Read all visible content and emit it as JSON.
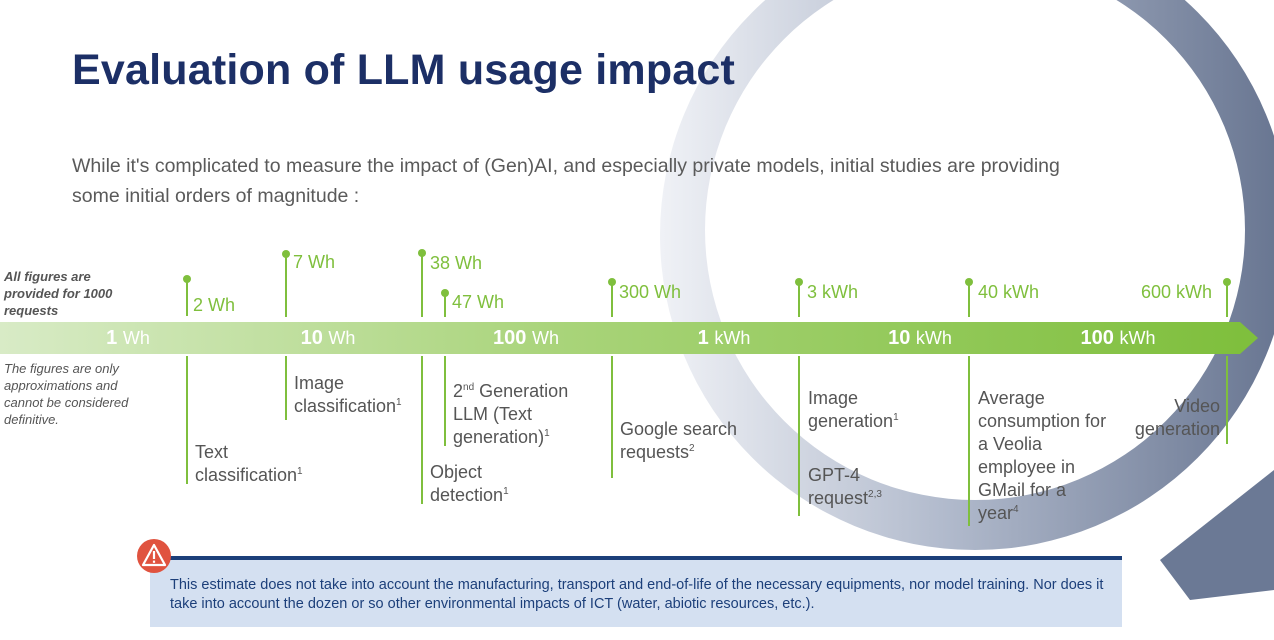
{
  "title": "Evaluation of LLM usage impact",
  "subtitle": "While it's complicated to measure the impact of (Gen)AI, and especially private models, initial studies are providing some initial orders of magnitude :",
  "notes": {
    "top": "All figures are provided for 1000 requests",
    "bottom": "The figures are only approximations and cannot be considered definitive."
  },
  "scale": [
    {
      "num": "1",
      "unit": "Wh"
    },
    {
      "num": "10",
      "unit": "Wh"
    },
    {
      "num": "100",
      "unit": "Wh"
    },
    {
      "num": "1",
      "unit": "kWh"
    },
    {
      "num": "10",
      "unit": "kWh"
    },
    {
      "num": "100",
      "unit": "kWh"
    }
  ],
  "items": [
    {
      "value": "2 Wh",
      "label": "Text classification",
      "sup": "1"
    },
    {
      "value": "7 Wh",
      "label": "Image classification",
      "sup": "1"
    },
    {
      "value": "38 Wh",
      "label": "Object detection",
      "sup": "1"
    },
    {
      "value": "47 Wh",
      "label_sup_prefix": "nd",
      "label_prefix": "2",
      "label": " Generation LLM (Text generation)",
      "sup": "1"
    },
    {
      "value": "300 Wh",
      "label": "Google search requests",
      "sup": "2"
    },
    {
      "value": "3 kWh",
      "label": "Image generation",
      "sup": "1",
      "label2": "GPT-4 request",
      "sup2": "2,3"
    },
    {
      "value": "40 kWh",
      "label": "Average consumption for a Veolia employee in GMail for a year",
      "sup": "4"
    },
    {
      "value": "600 kWh",
      "label": "Video generation"
    }
  ],
  "warning": {
    "icon": "warning-icon",
    "text": "This estimate does not take into account the manufacturing, transport and end-of-life of the necessary equipments, nor model training. Nor does it take into account the dozen or so other environmental impacts of ICT (water, abiotic resources, etc.)."
  },
  "colors": {
    "title": "#1c2f66",
    "accent_green": "#7fbf3d",
    "warning_bar": "#1c3f7a",
    "warning_bg": "#d4e0f1",
    "warning_icon": "#e0533f"
  }
}
